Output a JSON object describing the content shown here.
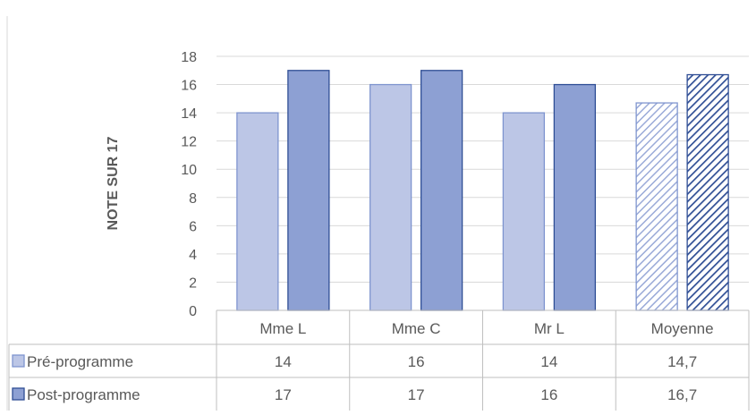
{
  "chart_data": {
    "type": "bar",
    "ylabel": "NOTE SUR 17",
    "ylim": [
      0,
      18
    ],
    "yticks": [
      0,
      2,
      4,
      6,
      8,
      10,
      12,
      14,
      16,
      18
    ],
    "grid": true,
    "categories": [
      "Mme L",
      "Mme C",
      "Mr L",
      "Moyenne"
    ],
    "series": [
      {
        "name": "Pré-programme",
        "values": [
          14,
          16,
          14,
          14.7
        ],
        "table_values": [
          "14",
          "16",
          "14",
          "14,7"
        ],
        "color": "#bcc6e6",
        "stroke": "#7f95cf"
      },
      {
        "name": "Post-programme",
        "values": [
          17,
          17,
          16,
          16.7
        ],
        "table_values": [
          "17",
          "17",
          "16",
          "16,7"
        ],
        "color": "#8da0d3",
        "stroke": "#2f4e95"
      }
    ],
    "hatched_categories": [
      "Moyenne"
    ],
    "legend": "data-table"
  }
}
